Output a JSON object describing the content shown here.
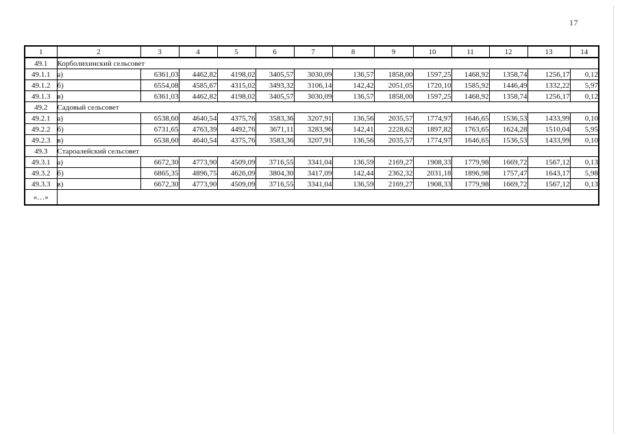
{
  "page": {
    "number": "17"
  },
  "table": {
    "header": [
      "1",
      "2",
      "3",
      "4",
      "5",
      "6",
      "7",
      "8",
      "9",
      "10",
      "11",
      "12",
      "13",
      "14"
    ],
    "rows": [
      {
        "type": "section",
        "num": "49.1",
        "label": "Корболихинский сельсовет"
      },
      {
        "type": "data",
        "num": "49.1.1",
        "letter": "а)",
        "values": [
          "6361,03",
          "4462,82",
          "4198,02",
          "3405,57",
          "3030,09",
          "136,57",
          "1858,00",
          "1597,25",
          "1468,92",
          "1358,74",
          "1256,17",
          "0,12"
        ]
      },
      {
        "type": "data",
        "num": "49.1.2",
        "letter": "б)",
        "values": [
          "6554,08",
          "4585,67",
          "4315,02",
          "3493,32",
          "3106,14",
          "142,42",
          "2051,05",
          "1720,10",
          "1585,92",
          "1446,49",
          "1332,22",
          "5,97"
        ]
      },
      {
        "type": "data",
        "num": "49.1.3",
        "letter": "в)",
        "values": [
          "6361,03",
          "4462,82",
          "4198,02",
          "3405,57",
          "3030,09",
          "136,57",
          "1858,00",
          "1597,25",
          "1468,92",
          "1358,74",
          "1256,17",
          "0,12"
        ]
      },
      {
        "type": "section",
        "num": "49.2",
        "label": "Садовый сельсовет"
      },
      {
        "type": "data",
        "num": "49.2.1",
        "letter": "а)",
        "values": [
          "6538,60",
          "4640,54",
          "4375,76",
          "3583,36",
          "3207,91",
          "136,56",
          "2035,57",
          "1774,97",
          "1646,65",
          "1536,53",
          "1433,99",
          "0,10"
        ]
      },
      {
        "type": "data",
        "num": "49.2.2",
        "letter": "б)",
        "values": [
          "6731,65",
          "4763,39",
          "4492,76",
          "3671,11",
          "3283,96",
          "142,41",
          "2228,62",
          "1897,82",
          "1763,65",
          "1624,28",
          "1510,04",
          "5,95"
        ]
      },
      {
        "type": "data",
        "num": "49.2.3",
        "letter": "в)",
        "values": [
          "6538,60",
          "4640,54",
          "4375,76",
          "3583,36",
          "3207,91",
          "136,56",
          "2035,57",
          "1774,97",
          "1646,65",
          "1536,53",
          "1433,99",
          "0,10"
        ]
      },
      {
        "type": "section",
        "num": "49.3",
        "label": "Староалейский сельсовет"
      },
      {
        "type": "data",
        "num": "49.3.1",
        "letter": "а)",
        "values": [
          "6672,30",
          "4773,90",
          "4509,09",
          "3716,55",
          "3341,04",
          "136,59",
          "2169,27",
          "1908,33",
          "1779,98",
          "1669,72",
          "1567,12",
          "0,13"
        ]
      },
      {
        "type": "data",
        "num": "49.3.2",
        "letter": "б)",
        "values": [
          "6865,35",
          "4896,75",
          "4626,09",
          "3804,30",
          "3417,09",
          "142,44",
          "2362,32",
          "2031,18",
          "1896,98",
          "1757,47",
          "1643,17",
          "5,98"
        ]
      },
      {
        "type": "data",
        "num": "49.3.3",
        "letter": "в)",
        "values": [
          "6672,30",
          "4773,90",
          "4509,09",
          "3716,55",
          "3341,04",
          "136,59",
          "2169,27",
          "1908,33",
          "1779,98",
          "1669,72",
          "1567,12",
          "0,13"
        ]
      },
      {
        "type": "ellipsis",
        "num": "«…»"
      }
    ]
  }
}
